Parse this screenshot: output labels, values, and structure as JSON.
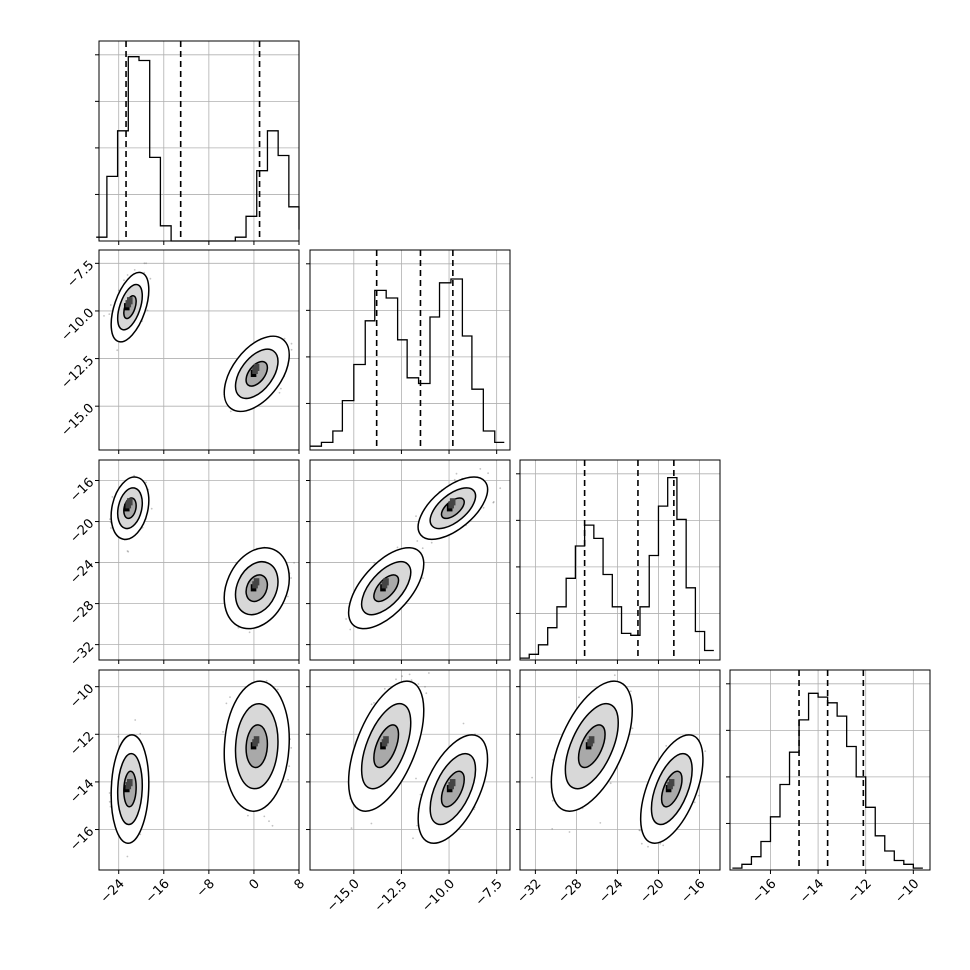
{
  "chart_data": {
    "type": "corner",
    "parameters": [
      {
        "index": 0,
        "range": [
          -27.5,
          8.0
        ],
        "ticks": [
          -24,
          -16,
          -8,
          0,
          8
        ],
        "quantiles": [
          -22.7,
          -13.0,
          1.0
        ]
      },
      {
        "index": 1,
        "range": [
          -17.3,
          -6.8
        ],
        "ticks": [
          -15.0,
          -12.5,
          -10.0,
          -7.5
        ],
        "quantiles": [
          -13.8,
          -11.5,
          -9.8
        ]
      },
      {
        "index": 2,
        "range": [
          -33.5,
          -14.0
        ],
        "ticks": [
          -32,
          -28,
          -24,
          -20,
          -16
        ],
        "quantiles": [
          -27.2,
          -22.0,
          -18.5
        ]
      },
      {
        "index": 3,
        "range": [
          -17.7,
          -9.3
        ],
        "ticks": [
          -16,
          -14,
          -12,
          -10
        ],
        "quantiles": [
          -14.8,
          -13.6,
          -12.1
        ]
      }
    ],
    "tick_labels": {
      "p0": [
        "−24",
        "−16",
        "−8",
        "0",
        "8"
      ],
      "p1": [
        "−15.0",
        "−12.5",
        "−10.0",
        "−7.5"
      ],
      "p2": [
        "−32",
        "−28",
        "−24",
        "−20",
        "−16"
      ],
      "p3": [
        "−16",
        "−14",
        "−12",
        "−10"
      ]
    },
    "marginals": [
      {
        "parameter": 0,
        "bin_edges": [
          -28.0,
          -26.1,
          -24.2,
          -22.3,
          -20.4,
          -18.5,
          -16.6,
          -14.7,
          -12.8,
          -10.9,
          -9.0,
          -7.1,
          -5.2,
          -3.3,
          -1.4,
          0.5,
          2.4,
          4.3,
          6.2,
          8.0
        ],
        "counts": [
          2,
          34,
          58,
          97,
          95,
          44,
          8,
          0,
          0,
          0,
          0,
          0,
          0,
          2,
          13,
          37,
          58,
          45,
          18,
          6
        ],
        "ymax": 100
      },
      {
        "parameter": 1,
        "bin_edges": [
          -17.3,
          -16.7,
          -16.1,
          -15.6,
          -15.0,
          -14.4,
          -13.9,
          -13.3,
          -12.7,
          -12.2,
          -11.6,
          -11.0,
          -10.5,
          -9.9,
          -9.3,
          -8.8,
          -8.2,
          -7.6,
          -7.1
        ],
        "counts": [
          2,
          4,
          10,
          26,
          45,
          68,
          84,
          80,
          58,
          38,
          35,
          70,
          88,
          90,
          60,
          32,
          10,
          4
        ],
        "ymax": 100
      },
      {
        "parameter": 2,
        "bin_edges": [
          -33.5,
          -32.6,
          -31.7,
          -30.8,
          -29.9,
          -29.0,
          -28.1,
          -27.2,
          -26.3,
          -25.4,
          -24.5,
          -23.6,
          -22.7,
          -21.8,
          -20.9,
          -20.0,
          -19.1,
          -18.2,
          -17.3,
          -16.4,
          -15.5,
          -14.6
        ],
        "counts": [
          1,
          3,
          8,
          17,
          28,
          43,
          60,
          71,
          64,
          45,
          28,
          14,
          13,
          28,
          55,
          81,
          96,
          74,
          38,
          15,
          5
        ],
        "ymax": 100
      },
      {
        "parameter": 3,
        "bin_edges": [
          -17.6,
          -17.2,
          -16.8,
          -16.4,
          -16.0,
          -15.6,
          -15.2,
          -14.8,
          -14.4,
          -14.0,
          -13.6,
          -13.2,
          -12.8,
          -12.4,
          -12.0,
          -11.6,
          -11.2,
          -10.8,
          -10.4,
          -10.0,
          -9.6
        ],
        "counts": [
          1,
          3,
          7,
          15,
          28,
          45,
          62,
          79,
          93,
          91,
          88,
          81,
          65,
          49,
          33,
          18,
          10,
          5,
          3,
          1
        ],
        "ymax": 100
      }
    ],
    "joint_modes": [
      {
        "parameter": 0,
        "modes": [
          {
            "mean": -22.0,
            "sd": 1.1,
            "weight": 0.5
          },
          {
            "mean": 0.5,
            "sd": 1.9,
            "weight": 0.5
          }
        ]
      },
      {
        "parameter": 1,
        "modes": [
          {
            "mean": -9.8,
            "sd": 0.6,
            "weight": 0.5
          },
          {
            "mean": -13.3,
            "sd": 0.65,
            "weight": 0.5
          }
        ]
      },
      {
        "parameter": 2,
        "modes": [
          {
            "mean": -18.7,
            "sd": 1.0,
            "weight": 0.5
          },
          {
            "mean": -26.5,
            "sd": 1.3,
            "weight": 0.5
          }
        ]
      },
      {
        "parameter": 3,
        "modes": [
          {
            "mean": -14.3,
            "sd": 0.75,
            "weight": 0.5
          },
          {
            "mean": -12.5,
            "sd": 0.9,
            "weight": 0.5
          }
        ]
      }
    ],
    "correlations": {
      "p0p1": 0.5,
      "p0p2": 0.25,
      "p0p3": 0.1,
      "p1p2": 0.6,
      "p1p3": 0.55,
      "p2p3": 0.55
    },
    "contour_levels": [
      0.39,
      0.86,
      0.99
    ],
    "grid": true,
    "colors": {
      "line": "#000000",
      "grid": "#b0b0b0",
      "density": "#000000",
      "contour_fill": "#ffffff"
    }
  }
}
